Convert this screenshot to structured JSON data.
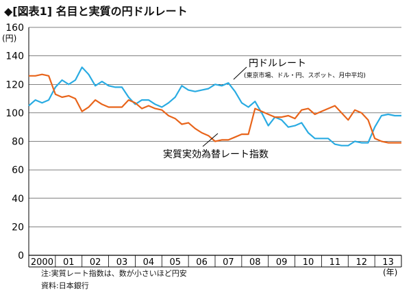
{
  "title": "◆[図表1] 名目と実質の円ドルレート",
  "notes": {
    "note": "注:実質レート指数は、数が小さいほど円安",
    "source": "資料:日本銀行"
  },
  "colors": {
    "nominal": "#29abe2",
    "real": "#e8641a",
    "axis": "#000000",
    "grid": "#000000"
  },
  "chart_data": {
    "type": "line",
    "y_unit": "(円)",
    "x_unit": "(年)",
    "ylim": [
      0,
      160
    ],
    "yticks": [
      0,
      20,
      40,
      60,
      80,
      100,
      120,
      140,
      160
    ],
    "xlim": [
      2000,
      2014
    ],
    "x_tick_labels": [
      "2000",
      "01",
      "02",
      "03",
      "04",
      "05",
      "06",
      "07",
      "08",
      "09",
      "10",
      "11",
      "12",
      "13"
    ],
    "grid": "horizontal",
    "annotations": [
      {
        "series": "nominal",
        "text": "円ドルレート",
        "sub": "(東京市場、ドル・円、スポット、月中平均)"
      },
      {
        "series": "real",
        "text": "実質実効為替レート指数"
      }
    ],
    "series": [
      {
        "key": "nominal",
        "name": "円ドルレート",
        "x": [
          2000.0,
          2000.25,
          2000.5,
          2000.75,
          2001.0,
          2001.25,
          2001.5,
          2001.75,
          2002.0,
          2002.25,
          2002.5,
          2002.75,
          2003.0,
          2003.25,
          2003.5,
          2003.75,
          2004.0,
          2004.25,
          2004.5,
          2004.75,
          2005.0,
          2005.25,
          2005.5,
          2005.75,
          2006.0,
          2006.25,
          2006.5,
          2006.75,
          2007.0,
          2007.25,
          2007.5,
          2007.75,
          2008.0,
          2008.25,
          2008.5,
          2008.75,
          2009.0,
          2009.25,
          2009.5,
          2009.75,
          2010.0,
          2010.25,
          2010.5,
          2010.75,
          2011.0,
          2011.25,
          2011.5,
          2011.75,
          2012.0,
          2012.25,
          2012.5,
          2012.75,
          2013.0,
          2013.25,
          2013.5,
          2013.75,
          2014.0
        ],
        "values": [
          105,
          109,
          107,
          109,
          118,
          123,
          120,
          123,
          132,
          127,
          119,
          122,
          119,
          118,
          118,
          111,
          106,
          109,
          109,
          106,
          104,
          107,
          111,
          119,
          116,
          115,
          116,
          117,
          120,
          119,
          121,
          115,
          107,
          104,
          108,
          100,
          91,
          97,
          95,
          90,
          91,
          93,
          86,
          82,
          82,
          82,
          78,
          77,
          77,
          80,
          79,
          79,
          90,
          98,
          99,
          98,
          98
        ]
      },
      {
        "key": "real",
        "name": "実質実効為替レート指数",
        "x": [
          2000.0,
          2000.25,
          2000.5,
          2000.75,
          2001.0,
          2001.25,
          2001.5,
          2001.75,
          2002.0,
          2002.25,
          2002.5,
          2002.75,
          2003.0,
          2003.25,
          2003.5,
          2003.75,
          2004.0,
          2004.25,
          2004.5,
          2004.75,
          2005.0,
          2005.25,
          2005.5,
          2005.75,
          2006.0,
          2006.25,
          2006.5,
          2006.75,
          2007.0,
          2007.25,
          2007.5,
          2007.75,
          2008.0,
          2008.25,
          2008.5,
          2008.75,
          2009.0,
          2009.25,
          2009.5,
          2009.75,
          2010.0,
          2010.25,
          2010.5,
          2010.75,
          2011.0,
          2011.25,
          2011.5,
          2011.75,
          2012.0,
          2012.25,
          2012.5,
          2012.75,
          2013.0,
          2013.25,
          2013.5,
          2013.75,
          2014.0
        ],
        "values": [
          126,
          126,
          127,
          126,
          113,
          111,
          112,
          110,
          101,
          104,
          109,
          106,
          104,
          104,
          104,
          109,
          107,
          103,
          105,
          103,
          102,
          98,
          96,
          92,
          93,
          89,
          86,
          84,
          80,
          81,
          81,
          83,
          85,
          85,
          103,
          101,
          99,
          97,
          97,
          98,
          96,
          102,
          103,
          99,
          101,
          103,
          105,
          100,
          95,
          102,
          100,
          95,
          82,
          80,
          79,
          79,
          79
        ]
      }
    ]
  }
}
